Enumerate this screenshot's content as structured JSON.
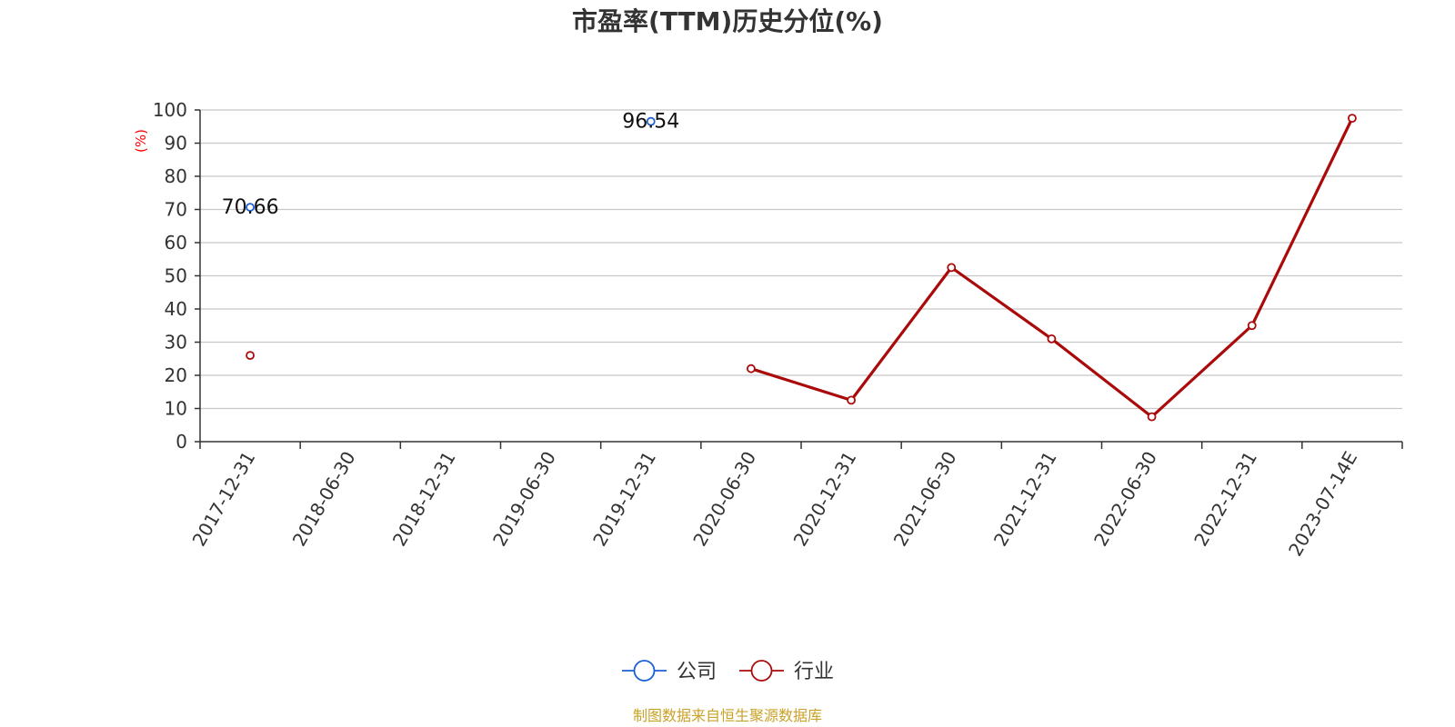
{
  "chart_data": {
    "type": "line",
    "title": "市盈率(TTM)历史分位(%)",
    "ylabel": "(%)",
    "ylim": [
      0,
      100
    ],
    "yticks": [
      0,
      10,
      20,
      30,
      40,
      50,
      60,
      70,
      80,
      90,
      100
    ],
    "grid": true,
    "legend_position": "bottom-center",
    "categories": [
      "2017-12-31",
      "2018-06-30",
      "2018-12-31",
      "2019-06-30",
      "2019-12-31",
      "2020-06-30",
      "2020-12-31",
      "2021-06-30",
      "2021-12-31",
      "2022-06-30",
      "2022-12-31",
      "2023-07-14E"
    ],
    "series": [
      {
        "name": "公司",
        "color": "#1a5fd6",
        "values": [
          70.66,
          null,
          null,
          null,
          96.54,
          null,
          null,
          null,
          null,
          null,
          null,
          null
        ],
        "labels": [
          "70.66",
          null,
          null,
          null,
          "96.54",
          null,
          null,
          null,
          null,
          null,
          null,
          null
        ]
      },
      {
        "name": "行业",
        "color": "#aa0a0a",
        "values": [
          26,
          null,
          null,
          null,
          null,
          22,
          12.5,
          52.5,
          31,
          7.5,
          35,
          97.5
        ]
      }
    ],
    "source": "制图数据来自恒生聚源数据库"
  }
}
